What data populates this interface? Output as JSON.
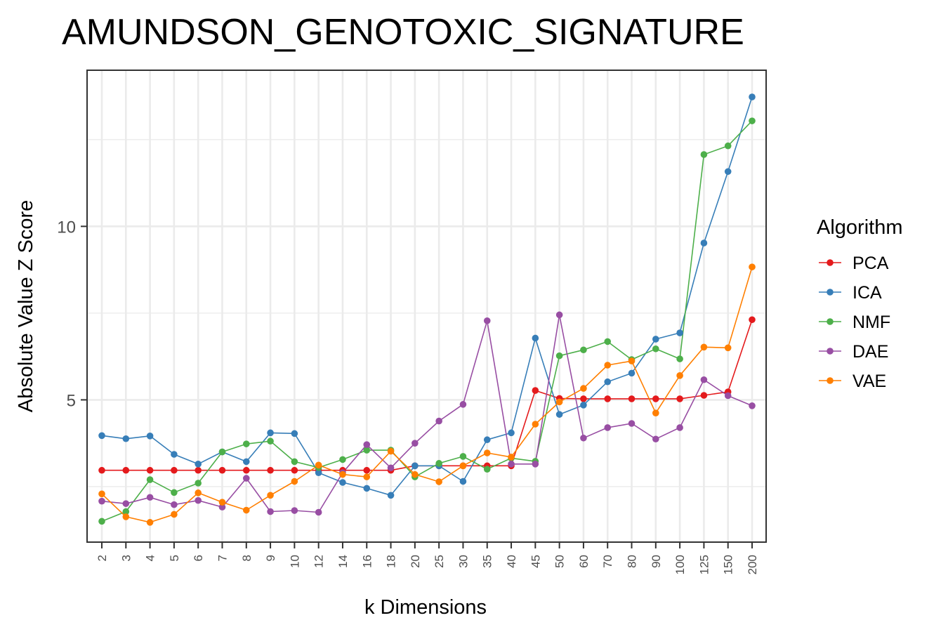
{
  "chart_data": {
    "type": "line",
    "title": "AMUNDSON_GENOTOXIC_SIGNATURE",
    "xlabel": "k Dimensions",
    "ylabel": "Absolute Value Z Score",
    "categories": [
      "2",
      "3",
      "4",
      "5",
      "6",
      "7",
      "8",
      "9",
      "10",
      "12",
      "14",
      "16",
      "18",
      "20",
      "25",
      "30",
      "35",
      "40",
      "45",
      "50",
      "60",
      "70",
      "80",
      "90",
      "100",
      "125",
      "150",
      "200"
    ],
    "ylim": [
      0.9,
      14.5
    ],
    "yticks": [
      5,
      10
    ],
    "grid": true,
    "legend": {
      "title": "Algorithm",
      "position": "right"
    },
    "series": [
      {
        "name": "PCA",
        "color": "#e41a1c",
        "values": [
          2.97,
          2.97,
          2.97,
          2.97,
          2.97,
          2.97,
          2.97,
          2.97,
          2.97,
          2.97,
          2.97,
          2.97,
          2.97,
          3.1,
          3.1,
          3.1,
          3.1,
          3.1,
          5.27,
          5.04,
          5.03,
          5.03,
          5.03,
          5.03,
          5.03,
          5.13,
          5.23,
          7.31
        ]
      },
      {
        "name": "ICA",
        "color": "#377eb8",
        "values": [
          3.97,
          3.88,
          3.96,
          3.43,
          3.15,
          3.5,
          3.22,
          4.05,
          4.03,
          2.9,
          2.62,
          2.45,
          2.25,
          3.1,
          3.1,
          2.65,
          3.85,
          4.05,
          6.78,
          4.58,
          4.85,
          5.52,
          5.77,
          6.75,
          6.93,
          9.52,
          11.58,
          13.73
        ]
      },
      {
        "name": "NMF",
        "color": "#4daf4a",
        "values": [
          1.5,
          1.78,
          2.7,
          2.33,
          2.6,
          3.5,
          3.73,
          3.81,
          3.22,
          3.05,
          3.28,
          3.55,
          3.55,
          2.78,
          3.17,
          3.37,
          3.0,
          3.32,
          3.23,
          6.27,
          6.44,
          6.68,
          6.16,
          6.47,
          6.18,
          12.07,
          12.32,
          13.04
        ]
      },
      {
        "name": "DAE",
        "color": "#984ea3",
        "values": [
          2.08,
          2.01,
          2.19,
          1.98,
          2.1,
          1.91,
          2.74,
          1.78,
          1.81,
          1.76,
          2.9,
          3.71,
          3.04,
          3.75,
          4.39,
          4.87,
          7.28,
          3.15,
          3.15,
          7.45,
          3.9,
          4.2,
          4.32,
          3.87,
          4.2,
          5.58,
          5.12,
          4.83
        ]
      },
      {
        "name": "VAE",
        "color": "#ff7f00",
        "values": [
          2.29,
          1.63,
          1.47,
          1.7,
          2.32,
          2.05,
          1.82,
          2.25,
          2.65,
          3.12,
          2.85,
          2.78,
          3.52,
          2.85,
          2.64,
          3.1,
          3.47,
          3.35,
          4.3,
          4.94,
          5.33,
          6.0,
          6.12,
          4.62,
          5.7,
          6.52,
          6.5,
          8.83
        ]
      }
    ]
  }
}
